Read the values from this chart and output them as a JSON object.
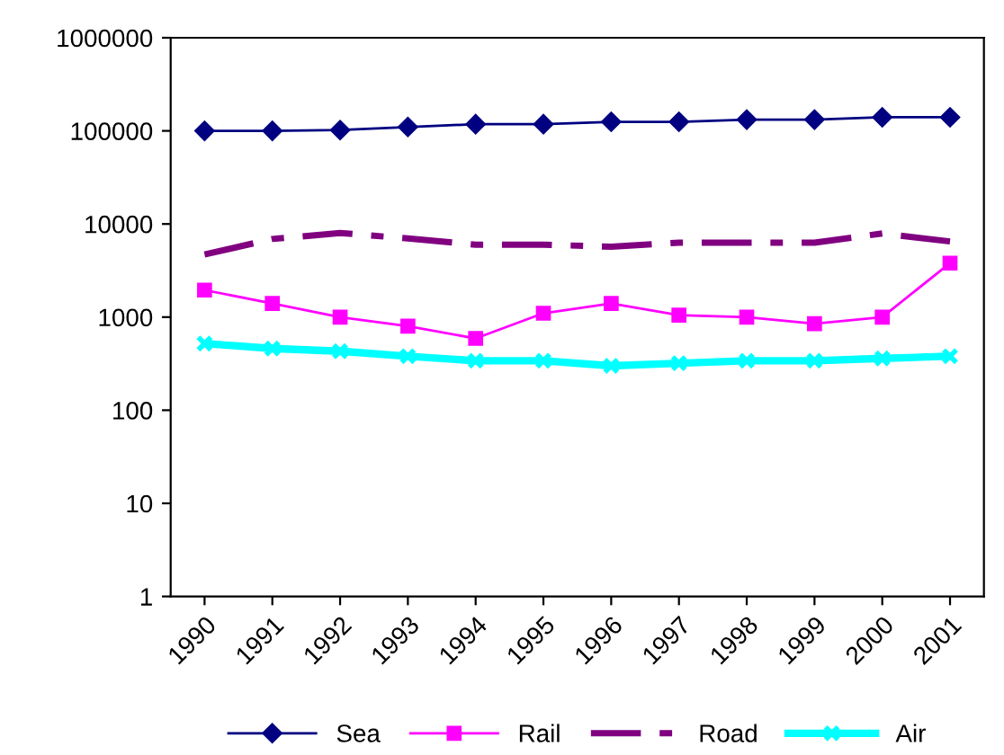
{
  "chart_data": {
    "type": "line",
    "categories": [
      "1990",
      "1991",
      "1992",
      "1993",
      "1994",
      "1995",
      "1996",
      "1997",
      "1998",
      "1999",
      "2000",
      "2001"
    ],
    "log": true,
    "ylim": [
      1,
      1000000
    ],
    "yticks": [
      1,
      10,
      100,
      1000,
      10000,
      100000,
      1000000
    ],
    "grid": false,
    "legend": "bottom",
    "series": [
      {
        "name": "Sea",
        "color": "#000080",
        "marker": "diamond",
        "line_style": "solid",
        "values": [
          100000,
          100000,
          102000,
          110000,
          118000,
          118000,
          125000,
          125000,
          132000,
          132000,
          140000,
          140000
        ]
      },
      {
        "name": "Rail",
        "color": "#ff00ff",
        "marker": "square",
        "line_style": "solid",
        "values": [
          1950,
          1400,
          1000,
          800,
          590,
          1100,
          1400,
          1050,
          1000,
          850,
          1000,
          3800
        ]
      },
      {
        "name": "Road",
        "color": "#800080",
        "marker": "none",
        "line_style": "dashed",
        "values": [
          4700,
          6900,
          8000,
          7000,
          6000,
          6000,
          5700,
          6300,
          6300,
          6300,
          7900,
          6500
        ]
      },
      {
        "name": "Air",
        "color": "#00ffff",
        "marker": "cross",
        "line_style": "solid",
        "values": [
          520,
          460,
          430,
          380,
          340,
          340,
          300,
          320,
          340,
          340,
          360,
          380
        ]
      }
    ]
  }
}
